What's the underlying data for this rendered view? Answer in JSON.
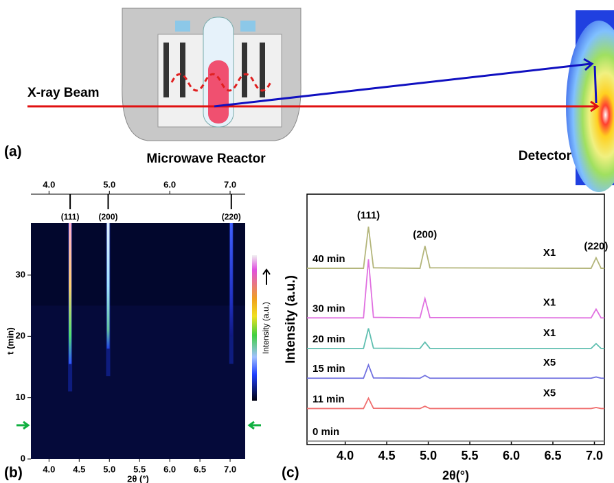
{
  "panel_a": {
    "label": "(a)",
    "beam": "X-ray Beam",
    "reactor": "Microwave Reactor",
    "detector": "Detector"
  },
  "chart_data": [
    {
      "type": "heatmap",
      "panel_label": "(b)",
      "xlabel": "2θ (°)",
      "ylabel": "t (min)",
      "colorbar_label": "Intensity (a.u.)",
      "xlim": [
        3.7,
        7.25
      ],
      "xticks": [
        {
          "value": 4,
          "label": "4.0"
        },
        {
          "value": 4.5,
          "label": "4.5"
        },
        {
          "value": 5,
          "label": "5.0"
        },
        {
          "value": 5.5,
          "label": "5.5"
        },
        {
          "value": 6,
          "label": "6.0"
        },
        {
          "value": 6.5,
          "label": "6.5"
        },
        {
          "value": 7,
          "label": "7.0"
        }
      ],
      "top_xticks": [
        {
          "value": 4,
          "label": "4.0"
        },
        {
          "value": 5,
          "label": "5.0"
        },
        {
          "value": 6,
          "label": "6.0"
        },
        {
          "value": 7,
          "label": "7.0"
        }
      ],
      "ylim": [
        0,
        38.5
      ],
      "yticks": [
        0,
        10,
        20,
        30
      ],
      "peaks": [
        {
          "label": "(111)",
          "x": 4.35,
          "onset": 15.5
        },
        {
          "label": "(200)",
          "x": 4.98,
          "onset": 18
        },
        {
          "label": "(220)",
          "x": 7.02,
          "onset": 20
        }
      ],
      "arrow_t": 5.5
    },
    {
      "type": "line",
      "panel_label": "(c)",
      "xlabel": "2θ(°)",
      "ylabel": "Intensity (a.u.)",
      "xlim": [
        3.54,
        7.12
      ],
      "xticks": [
        {
          "value": 4,
          "label": "4.0"
        },
        {
          "value": 4.5,
          "label": "4.5"
        },
        {
          "value": 5,
          "label": "5.0"
        },
        {
          "value": 5.5,
          "label": "5.5"
        },
        {
          "value": 6,
          "label": "6.0"
        },
        {
          "value": 6.5,
          "label": "6.5"
        },
        {
          "value": 7,
          "label": "7.0"
        }
      ],
      "ylim": [
        0,
        100
      ],
      "x": [
        3.54,
        4.22,
        4.28,
        4.34,
        4.9,
        4.96,
        5.02,
        6.96,
        7.02,
        7.08,
        7.12
      ],
      "series": [
        {
          "name": "40 min",
          "scale": "X1",
          "color": "#b3b57a",
          "values": [
            70.4,
            70.4,
            87,
            70.6,
            70.4,
            79.3,
            70.6,
            70.4,
            74.6,
            70.4,
            70.4
          ]
        },
        {
          "name": "30 min",
          "scale": "X1",
          "color": "#e070e0",
          "values": [
            50.6,
            50.6,
            74,
            50.8,
            50.6,
            58.3,
            50.7,
            50.6,
            54.1,
            50.6,
            50.6
          ]
        },
        {
          "name": "20 min",
          "scale": "X1",
          "color": "#5fbfb0",
          "values": [
            38.4,
            38.4,
            46.4,
            38.5,
            38.4,
            40.9,
            38.4,
            38.4,
            40.3,
            38.4,
            38.4
          ]
        },
        {
          "name": "15 min",
          "scale": "X5",
          "color": "#7070e0",
          "values": [
            26.5,
            26.5,
            31.8,
            26.6,
            26.5,
            27.6,
            26.5,
            26.5,
            27,
            26.5,
            26.5
          ]
        },
        {
          "name": "11 min",
          "scale": "X5",
          "color": "#f07070",
          "values": [
            14.4,
            14.4,
            18.5,
            14.5,
            14.4,
            15.3,
            14.4,
            14.4,
            14.8,
            14.4,
            14.4
          ]
        },
        {
          "name": "0 min",
          "color": "#8a8a8a",
          "values": [
            1.4,
            1.4,
            1.4,
            1.4,
            1.4,
            1.4,
            1.4,
            1.4,
            1.4,
            1.4,
            1.4
          ]
        }
      ],
      "peak_labels": [
        {
          "label": "(111)",
          "x": 4.28
        },
        {
          "label": "(200)",
          "x": 4.96
        },
        {
          "label": "(220)",
          "x": 7.02
        }
      ]
    }
  ]
}
